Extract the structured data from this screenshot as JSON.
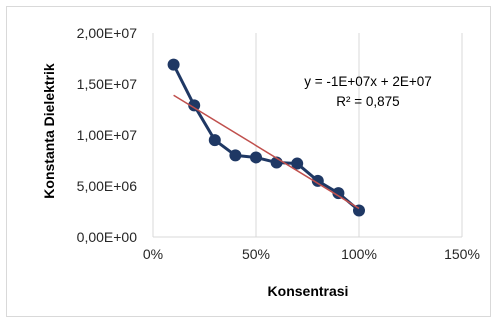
{
  "chart_data": {
    "type": "scatter",
    "xlabel": "Konsentrasi",
    "ylabel": "Konstanta Dielektrik",
    "xlim": [
      0,
      1.5
    ],
    "ylim": [
      0,
      20000000
    ],
    "x_ticks": [
      0,
      0.5,
      1.0,
      1.5
    ],
    "x_tick_labels": [
      "0%",
      "50%",
      "100%",
      "150%"
    ],
    "y_ticks": [
      0,
      5000000,
      10000000,
      15000000,
      20000000
    ],
    "y_tick_labels": [
      "0,00E+00",
      "5,00E+06",
      "1,00E+07",
      "1,50E+07",
      "2,00E+07"
    ],
    "grid": "vertical",
    "series": [
      {
        "x": [
          0.1,
          0.2,
          0.3,
          0.4,
          0.5,
          0.6,
          0.7,
          0.8,
          0.9,
          1.0
        ],
        "y": [
          16900000,
          12900000,
          9500000,
          8000000,
          7800000,
          7300000,
          7200000,
          5500000,
          4300000,
          2600000
        ],
        "color": "#1f3864",
        "connected": true
      }
    ],
    "trendline": {
      "x_range": [
        0.1,
        1.0
      ],
      "y_range": [
        13900000,
        2800000
      ],
      "color": "#c0504d",
      "equation": "y = -1E+07x + 2E+07",
      "r_squared": "R² = 0,875"
    }
  }
}
